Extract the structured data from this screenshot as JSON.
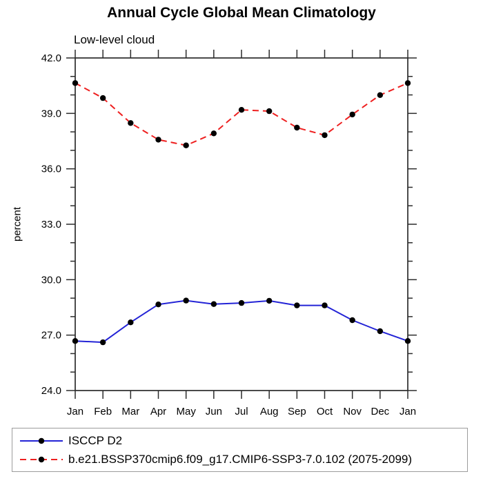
{
  "colors": {
    "axis": "#2b2b2b",
    "marker": "#000000",
    "legend_border": "#9c9c9c",
    "background": "#ffffff"
  },
  "chart_data": {
    "type": "line",
    "title": "Annual Cycle Global Mean Climatology",
    "subtitle": "Low-level cloud",
    "ylabel": "percent",
    "xlabel": "",
    "categories": [
      "Jan",
      "Feb",
      "Mar",
      "Apr",
      "May",
      "Jun",
      "Jul",
      "Aug",
      "Sep",
      "Oct",
      "Nov",
      "Dec",
      "Jan"
    ],
    "ylim": [
      24.0,
      42.0
    ],
    "ytick_major": 3.0,
    "ytick_minor": 1.0,
    "ytick_labels": [
      "24.0",
      "27.0",
      "30.0",
      "33.0",
      "36.0",
      "39.0",
      "42.0"
    ],
    "grid": false,
    "legend_position": "bottom-left-box",
    "series": [
      {
        "name": "ISCCP D2",
        "color": "#2323d6",
        "dash": "",
        "marker": "black-dot",
        "values": [
          26.68,
          26.61,
          27.69,
          28.66,
          28.87,
          28.68,
          28.74,
          28.86,
          28.61,
          28.61,
          27.81,
          27.21,
          26.68
        ]
      },
      {
        "name": "b.e21.BSSP370cmip6.f09_g17.CMIP6-SSP3-7.0.102 (2075-2099)",
        "color": "#ee1f1f",
        "dash": "9 6",
        "marker": "black-dot",
        "values": [
          40.64,
          39.83,
          38.48,
          37.58,
          37.27,
          37.92,
          39.19,
          39.12,
          38.23,
          37.82,
          38.94,
          39.99,
          40.64
        ]
      }
    ]
  }
}
